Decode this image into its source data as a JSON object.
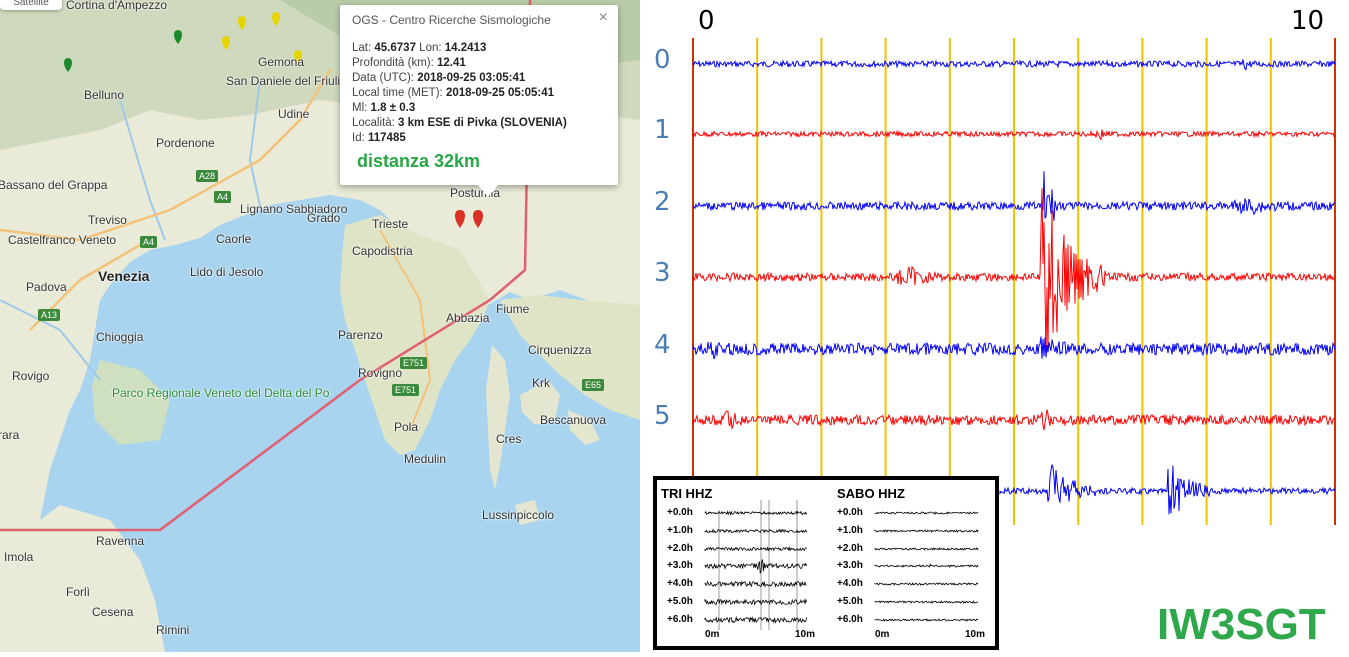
{
  "map": {
    "satellite_button": "Satellite",
    "labels": [
      "Cortina d'Ampezzo",
      "Belluno",
      "Pordenone",
      "Udine",
      "San Daniele del Friuli",
      "Gemona",
      "Bassano del Grappa",
      "Treviso",
      "Castelfranco Veneto",
      "Venezia",
      "Padova",
      "Chioggia",
      "Rovigo",
      "Lignano Sabbiadoro",
      "Grado",
      "Caorle",
      "Lido di Jesolo",
      "Trieste",
      "Capodistria",
      "Postumia",
      "Fiume",
      "Abbazia",
      "Parenzo",
      "Rovigno",
      "Pola",
      "Medulin",
      "Cres",
      "Krk",
      "Cirquenizza",
      "Bescanuova",
      "Lussinpiccolo",
      "Ravenna",
      "Imola",
      "Forlì",
      "Cesena",
      "Rimini",
      "rara"
    ],
    "park_label": "Parco Regionale Veneto del Delta del Po",
    "road_badges": [
      "A28",
      "A4",
      "A4",
      "A13",
      "E751",
      "E751",
      "E65"
    ]
  },
  "popup": {
    "title": "OGS - Centro Ricerche Sismologiche",
    "close_icon": "×",
    "lat_label": "Lat:",
    "lat": "45.6737",
    "lon_label": "Lon:",
    "lon": "14.2413",
    "depth_label": "Profondità (km):",
    "depth": "12.41",
    "date_label": "Data (UTC):",
    "date": "2018-09-25 03:05:41",
    "local_label": "Local time (MET):",
    "local": "2018-09-25 05:05:41",
    "ml_label": "Ml:",
    "ml": "1.8 ± 0.3",
    "place_label": "Località:",
    "place": "3 km ESE di Pivka (SLOVENIA)",
    "id_label": "Id:",
    "id": "117485",
    "distance": "distanza 32km"
  },
  "seismogram": {
    "tick_start": "0",
    "tick_end": "10",
    "rows": [
      "0",
      "1",
      "2",
      "3",
      "4",
      "5"
    ],
    "trace_colors": [
      "#0000ff",
      "#ff0000"
    ],
    "grid_color": "#f2c200",
    "edge_color": "#cc3300"
  },
  "inset": {
    "left_title": "TRI HHZ",
    "right_title": "SABO HHZ",
    "hours": [
      "+0.0h",
      "+1.0h",
      "+2.0h",
      "+3.0h",
      "+4.0h",
      "+5.0h",
      "+6.0h"
    ],
    "axis_start": "0m",
    "axis_end": "10m"
  },
  "callsign": "IW3SGT"
}
